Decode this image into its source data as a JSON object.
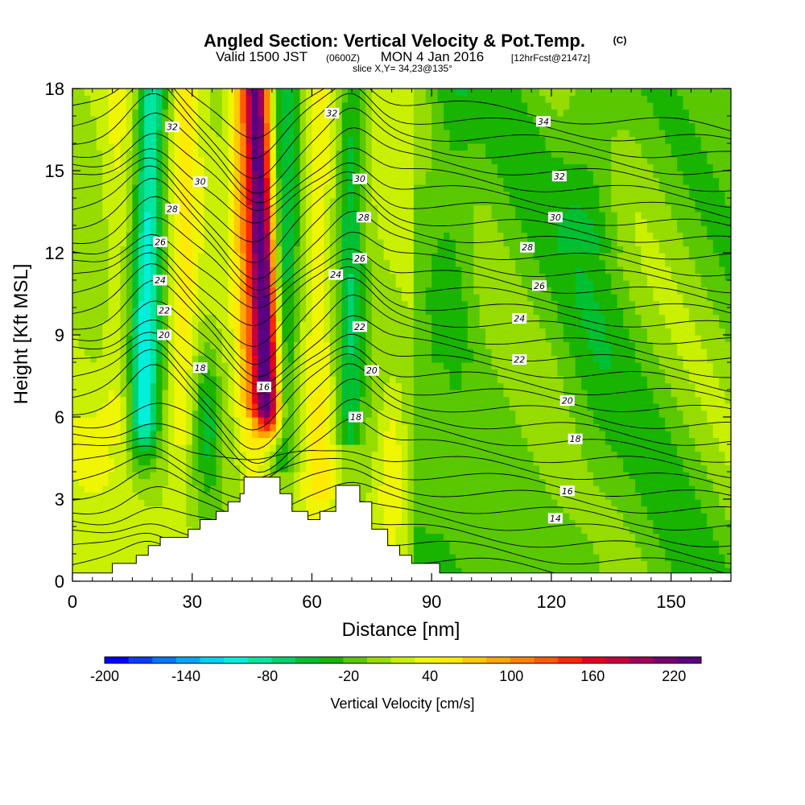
{
  "title": {
    "main": "Angled Section: Vertical Velocity & Pot.Temp.",
    "main_tag": "(C)",
    "valid_a": "Valid 1500 JST",
    "valid_b": "(0600Z)",
    "valid_c": "MON 4 Jan 2016",
    "valid_d": "[12hrFcst@2147z]",
    "slice": "slice X,Y= 34,23@135°"
  },
  "chart_data": {
    "type": "heatmap",
    "xlabel": "Distance [nm]",
    "ylabel": "Height [Kft MSL]",
    "xlim": [
      0,
      165
    ],
    "ylim": [
      0,
      18
    ],
    "x_ticks": [
      0,
      30,
      60,
      90,
      120,
      150
    ],
    "y_ticks": [
      0,
      3,
      6,
      9,
      12,
      15,
      18
    ],
    "colorbar": {
      "label": "Vertical Velocity [cm/s]",
      "tick_labels": [
        "-200",
        "-140",
        "-80",
        "-20",
        "40",
        "100",
        "160",
        "220"
      ],
      "tick_values": [
        -200,
        -140,
        -80,
        -20,
        40,
        100,
        160,
        220
      ],
      "range": [
        -200,
        240
      ],
      "colors": [
        "#0000ff",
        "#0a3cff",
        "#0078ff",
        "#00a8ff",
        "#00d2f5",
        "#00f0dc",
        "#00e6a0",
        "#00d26e",
        "#00c032",
        "#19b400",
        "#5ac800",
        "#96dc00",
        "#c8f000",
        "#f0f500",
        "#ffeb00",
        "#ffc800",
        "#ffa500",
        "#ff8200",
        "#ff5a00",
        "#ff2800",
        "#e6001e",
        "#c8003c",
        "#a0005a",
        "#78006e",
        "#5a0082"
      ]
    },
    "updraft_cores": [
      {
        "x": 46,
        "y_range": [
          6.5,
          18
        ],
        "peak_w": 230
      },
      {
        "x": 52,
        "y_range": [
          3,
          18
        ],
        "peak_w": 40
      }
    ],
    "downdraft_cores": [
      {
        "x": 20,
        "y_range": [
          6,
          18
        ],
        "peak_w": -110
      },
      {
        "x": 35,
        "y_range": [
          4,
          8
        ],
        "peak_w": -60
      },
      {
        "x": 55,
        "y_range": [
          4,
          14
        ],
        "peak_w": -60
      },
      {
        "x": 70,
        "y_range": [
          5,
          18
        ],
        "peak_w": -60
      }
    ],
    "terrain_steps": [
      [
        0,
        0.3
      ],
      [
        10,
        0.3
      ],
      [
        10,
        0.65
      ],
      [
        16,
        0.65
      ],
      [
        16,
        0.95
      ],
      [
        19,
        0.95
      ],
      [
        19,
        1.3
      ],
      [
        22,
        1.3
      ],
      [
        22,
        1.6
      ],
      [
        29,
        1.6
      ],
      [
        29,
        1.9
      ],
      [
        32,
        1.9
      ],
      [
        32,
        2.25
      ],
      [
        36,
        2.25
      ],
      [
        36,
        2.55
      ],
      [
        39,
        2.55
      ],
      [
        39,
        2.9
      ],
      [
        42,
        2.9
      ],
      [
        42,
        3.2
      ],
      [
        43,
        3.2
      ],
      [
        43,
        3.8
      ],
      [
        52,
        3.8
      ],
      [
        52,
        3.2
      ],
      [
        55,
        3.2
      ],
      [
        55,
        2.55
      ],
      [
        59,
        2.55
      ],
      [
        59,
        2.25
      ],
      [
        62,
        2.25
      ],
      [
        62,
        2.55
      ],
      [
        66,
        2.55
      ],
      [
        66,
        3.5
      ],
      [
        72,
        3.5
      ],
      [
        72,
        2.9
      ],
      [
        75,
        2.9
      ],
      [
        75,
        1.9
      ],
      [
        79,
        1.9
      ],
      [
        79,
        1.3
      ],
      [
        82,
        1.3
      ],
      [
        82,
        0.95
      ],
      [
        85,
        0.95
      ],
      [
        85,
        0.65
      ],
      [
        92,
        0.65
      ],
      [
        92,
        0.3
      ],
      [
        165,
        0.3
      ]
    ],
    "theta_contours": [
      {
        "value": "14",
        "label_xy": [
          121,
          2.3
        ]
      },
      {
        "value": "16",
        "label_xy": [
          124,
          3.3
        ]
      },
      {
        "value": "18",
        "label_xy": [
          32,
          7.8
        ]
      },
      {
        "value": "18",
        "label_xy": [
          71,
          6.0
        ]
      },
      {
        "value": "18",
        "label_xy": [
          126,
          5.2
        ]
      },
      {
        "value": "16",
        "label_xy": [
          48,
          7.1
        ]
      },
      {
        "value": "20",
        "label_xy": [
          23,
          9.0
        ]
      },
      {
        "value": "20",
        "label_xy": [
          75,
          7.7
        ]
      },
      {
        "value": "20",
        "label_xy": [
          124,
          6.6
        ]
      },
      {
        "value": "22",
        "label_xy": [
          23,
          9.9
        ]
      },
      {
        "value": "22",
        "label_xy": [
          72,
          9.3
        ]
      },
      {
        "value": "22",
        "label_xy": [
          112,
          8.1
        ]
      },
      {
        "value": "24",
        "label_xy": [
          22,
          11.0
        ]
      },
      {
        "value": "24",
        "label_xy": [
          66,
          11.2
        ]
      },
      {
        "value": "24",
        "label_xy": [
          112,
          9.6
        ]
      },
      {
        "value": "26",
        "label_xy": [
          22,
          12.4
        ]
      },
      {
        "value": "26",
        "label_xy": [
          72,
          11.8
        ]
      },
      {
        "value": "26",
        "label_xy": [
          117,
          10.8
        ]
      },
      {
        "value": "28",
        "label_xy": [
          25,
          13.6
        ]
      },
      {
        "value": "28",
        "label_xy": [
          73,
          13.3
        ]
      },
      {
        "value": "28",
        "label_xy": [
          114,
          12.2
        ]
      },
      {
        "value": "30",
        "label_xy": [
          32,
          14.6
        ]
      },
      {
        "value": "30",
        "label_xy": [
          72,
          14.7
        ]
      },
      {
        "value": "30",
        "label_xy": [
          121,
          13.3
        ]
      },
      {
        "value": "32",
        "label_xy": [
          25,
          16.6
        ]
      },
      {
        "value": "32",
        "label_xy": [
          65,
          17.1
        ]
      },
      {
        "value": "32",
        "label_xy": [
          122,
          14.8
        ]
      },
      {
        "value": "34",
        "label_xy": [
          118,
          16.8
        ]
      }
    ]
  }
}
